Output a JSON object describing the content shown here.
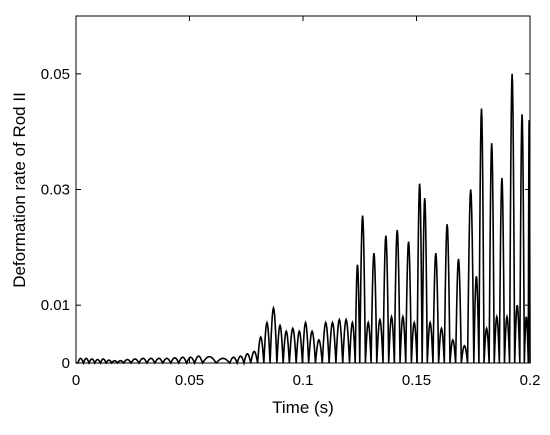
{
  "chart_data": {
    "type": "line",
    "xlabel": "Time (s)",
    "ylabel": "Deformation rate of Rod II",
    "xlim": [
      0,
      0.2
    ],
    "ylim": [
      0,
      0.06
    ],
    "xticks": [
      0,
      0.05,
      0.1,
      0.15,
      0.2
    ],
    "xtick_labels": [
      "0",
      "0.05",
      "0.1",
      "0.15",
      "0.2"
    ],
    "yticks": [
      0,
      0.01,
      0.03,
      0.05
    ],
    "ytick_labels": [
      "0",
      "0.01",
      "0.03",
      "0.05"
    ],
    "grid": false,
    "legend": "none",
    "line_color": "#000000",
    "series": [
      {
        "peaks": [
          [
            0.002,
            0.0008
          ],
          [
            0.0045,
            0.0008
          ],
          [
            0.007,
            0.0007
          ],
          [
            0.0095,
            0.0006
          ],
          [
            0.012,
            0.0007
          ],
          [
            0.0145,
            0.0005
          ],
          [
            0.017,
            0.0004
          ],
          [
            0.0195,
            0.0004
          ],
          [
            0.0225,
            0.0006
          ],
          [
            0.026,
            0.0007
          ],
          [
            0.0295,
            0.0008
          ],
          [
            0.033,
            0.0008
          ],
          [
            0.0365,
            0.0008
          ],
          [
            0.04,
            0.0008
          ],
          [
            0.0435,
            0.0009
          ],
          [
            0.047,
            0.001
          ],
          [
            0.0505,
            0.001
          ],
          [
            0.054,
            0.0012
          ],
          [
            0.0575,
            0.0011
          ],
          [
            0.066,
            0.0008
          ],
          [
            0.0695,
            0.001
          ],
          [
            0.0725,
            0.0012
          ],
          [
            0.0755,
            0.0016
          ],
          [
            0.0785,
            0.002
          ],
          [
            0.0815,
            0.0045
          ],
          [
            0.084,
            0.007
          ],
          [
            0.087,
            0.0095
          ],
          [
            0.09,
            0.0065
          ],
          [
            0.0925,
            0.0055
          ],
          [
            0.0955,
            0.006
          ],
          [
            0.0985,
            0.0055
          ],
          [
            0.101,
            0.007
          ],
          [
            0.104,
            0.0055
          ],
          [
            0.107,
            0.004
          ],
          [
            0.11,
            0.007
          ],
          [
            0.113,
            0.007
          ],
          [
            0.116,
            0.0075
          ],
          [
            0.119,
            0.0075
          ],
          [
            0.122,
            0.007
          ],
          [
            0.124,
            0.017
          ],
          [
            0.126,
            0.0255
          ],
          [
            0.129,
            0.007
          ],
          [
            0.131,
            0.019
          ],
          [
            0.134,
            0.0075
          ],
          [
            0.1365,
            0.022
          ],
          [
            0.139,
            0.008
          ],
          [
            0.1415,
            0.023
          ],
          [
            0.144,
            0.008
          ],
          [
            0.1465,
            0.021
          ],
          [
            0.149,
            0.007
          ],
          [
            0.1515,
            0.031
          ],
          [
            0.1535,
            0.0285
          ],
          [
            0.156,
            0.007
          ],
          [
            0.1585,
            0.019
          ],
          [
            0.161,
            0.006
          ],
          [
            0.1635,
            0.024
          ],
          [
            0.166,
            0.004
          ],
          [
            0.1685,
            0.018
          ],
          [
            0.171,
            0.003
          ],
          [
            0.174,
            0.03
          ],
          [
            0.1765,
            0.015
          ],
          [
            0.1785,
            0.044
          ],
          [
            0.181,
            0.006
          ],
          [
            0.183,
            0.038
          ],
          [
            0.1855,
            0.008
          ],
          [
            0.1875,
            0.032
          ],
          [
            0.19,
            0.008
          ],
          [
            0.192,
            0.05
          ],
          [
            0.1945,
            0.01
          ],
          [
            0.1965,
            0.043
          ],
          [
            0.1985,
            0.008
          ],
          [
            0.2,
            0.042
          ]
        ]
      }
    ]
  }
}
